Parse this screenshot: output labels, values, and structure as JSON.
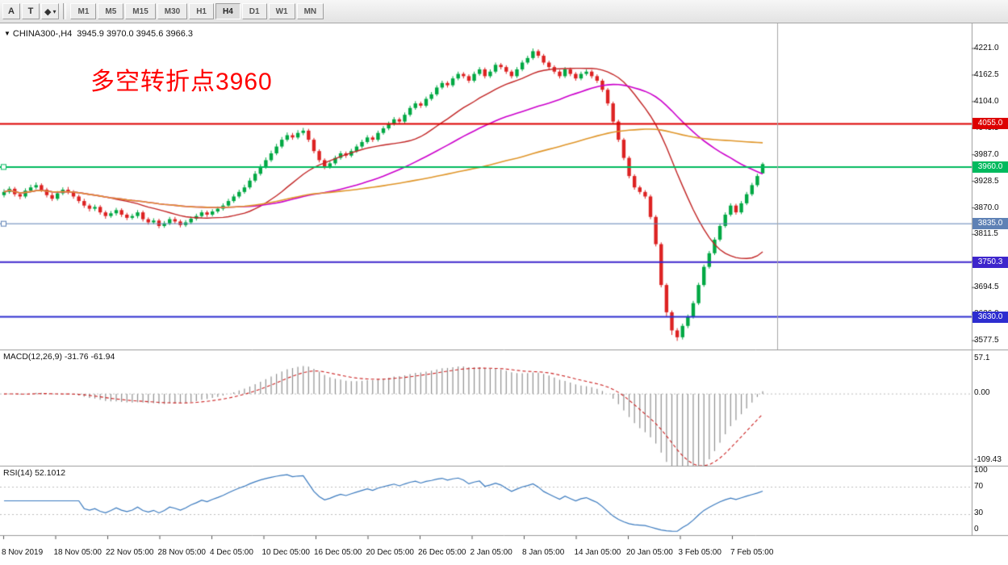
{
  "toolbar": {
    "tool_buttons": [
      {
        "name": "arrow-tool",
        "label": "A"
      },
      {
        "name": "text-tool",
        "label": "T"
      },
      {
        "name": "objects-dropdown",
        "label": "◆",
        "caret": "▾"
      }
    ],
    "timeframes": [
      "M1",
      "M5",
      "M15",
      "M30",
      "H1",
      "H4",
      "D1",
      "W1",
      "MN"
    ],
    "active_timeframe": "H4"
  },
  "chart": {
    "symbol_label": "CHINA300-,H4",
    "ohlc_label": "3945.9 3970.0 3945.6 3966.3",
    "annotation": "多空转折点3960",
    "levels": [
      {
        "label": "4055.0",
        "price": 4055.0,
        "color": "#dd0000",
        "width": 2,
        "handle": false
      },
      {
        "label": "3960.0",
        "price": 3960.0,
        "color": "#00ba5e",
        "width": 2,
        "handle": true
      },
      {
        "label": "3835.0",
        "price": 3835.0,
        "color": "#5e81b5",
        "width": 1,
        "handle": true
      },
      {
        "label": "3750.3",
        "price": 3750.3,
        "color": "#3d25cc",
        "width": 2,
        "handle": false
      },
      {
        "label": "3630.0",
        "price": 3630.0,
        "color": "#2d2dd0",
        "width": 2,
        "handle": false
      }
    ],
    "colors": {
      "up": "#00a843",
      "down": "#dd2222",
      "ma_fast": "#c22525",
      "ma_mid": "#cc00cc",
      "ma_slow": "#e0962a",
      "macd_hist": "#909090",
      "macd_signal": "#cc2222",
      "rsi": "#3a7abf",
      "annotation": "#ff0000"
    }
  },
  "macd_panel": {
    "label": "MACD(12,26,9) -31.76 -61.94",
    "axis_top": "57.1",
    "axis_zero": "0.00",
    "axis_bottom": "-109.43"
  },
  "rsi_panel": {
    "label": "RSI(14) 52.1012",
    "axis": [
      "100",
      "70",
      "30",
      "0"
    ]
  },
  "chart_data": {
    "type": "candlestick",
    "title": "CHINA300-,H4",
    "instrument": "CHINA300-",
    "timeframe": "H4",
    "last_quote": {
      "open": 3945.9,
      "high": 3970.0,
      "low": 3945.6,
      "close": 3966.3
    },
    "price_axis_ticks": [
      4221.0,
      4162.5,
      4104.0,
      4045.5,
      3987.0,
      3928.5,
      3870.0,
      3811.5,
      3753.0,
      3694.5,
      3636.0,
      3577.5
    ],
    "x_axis_ticks": [
      "8 Nov 2019",
      "18 Nov 05:00",
      "22 Nov 05:00",
      "28 Nov 05:00",
      "4 Dec 05:00",
      "10 Dec 05:00",
      "16 Dec 05:00",
      "20 Dec 05:00",
      "26 Dec 05:00",
      "2 Jan 05:00",
      "8 Jan 05:00",
      "14 Jan 05:00",
      "20 Jan 05:00",
      "3 Feb 05:00",
      "7 Feb 05:00"
    ],
    "horizontal_levels": [
      4055.0,
      3960.0,
      3835.0,
      3750.3,
      3630.0
    ],
    "moving_average_periods": [
      20,
      45,
      90
    ],
    "indicators": [
      {
        "type": "MACD",
        "params": [
          12,
          26,
          9
        ],
        "current_macd": -31.76,
        "current_signal": -61.94,
        "axis_range": [
          -109.43,
          57.1
        ]
      },
      {
        "type": "RSI",
        "params": [
          14
        ],
        "current_value": 52.1012,
        "axis_ticks": [
          0,
          30,
          70,
          100
        ]
      }
    ],
    "annotation": {
      "text": "多空转折点3960",
      "color": "#ff0000"
    },
    "format": "[open,high,low,close]",
    "candles_ohlc": [
      [
        3898,
        3911,
        3893,
        3905
      ],
      [
        3905,
        3917,
        3901,
        3912
      ],
      [
        3912,
        3916,
        3895,
        3900
      ],
      [
        3900,
        3904,
        3889,
        3895
      ],
      [
        3895,
        3913,
        3891,
        3908
      ],
      [
        3908,
        3921,
        3904,
        3915
      ],
      [
        3915,
        3926,
        3911,
        3920
      ],
      [
        3920,
        3924,
        3905,
        3910
      ],
      [
        3910,
        3914,
        3893,
        3898
      ],
      [
        3898,
        3903,
        3885,
        3890
      ],
      [
        3890,
        3907,
        3886,
        3902
      ],
      [
        3902,
        3915,
        3898,
        3910
      ],
      [
        3910,
        3916,
        3900,
        3905
      ],
      [
        3905,
        3909,
        3890,
        3895
      ],
      [
        3895,
        3899,
        3880,
        3885
      ],
      [
        3885,
        3890,
        3870,
        3875
      ],
      [
        3875,
        3879,
        3862,
        3868
      ],
      [
        3868,
        3877,
        3863,
        3872
      ],
      [
        3872,
        3876,
        3855,
        3860
      ],
      [
        3860,
        3864,
        3846,
        3852
      ],
      [
        3852,
        3863,
        3848,
        3858
      ],
      [
        3858,
        3870,
        3853,
        3865
      ],
      [
        3865,
        3869,
        3850,
        3855
      ],
      [
        3855,
        3859,
        3843,
        3848
      ],
      [
        3848,
        3857,
        3844,
        3852
      ],
      [
        3852,
        3865,
        3847,
        3860
      ],
      [
        3860,
        3864,
        3840,
        3845
      ],
      [
        3845,
        3849,
        3833,
        3838
      ],
      [
        3838,
        3847,
        3834,
        3842
      ],
      [
        3842,
        3846,
        3825,
        3830
      ],
      [
        3830,
        3841,
        3826,
        3836
      ],
      [
        3836,
        3850,
        3832,
        3845
      ],
      [
        3845,
        3850,
        3835,
        3840
      ],
      [
        3840,
        3844,
        3827,
        3832
      ],
      [
        3832,
        3843,
        3828,
        3838
      ],
      [
        3838,
        3851,
        3834,
        3846
      ],
      [
        3846,
        3857,
        3842,
        3852
      ],
      [
        3852,
        3865,
        3848,
        3860
      ],
      [
        3860,
        3864,
        3850,
        3855
      ],
      [
        3855,
        3867,
        3851,
        3862
      ],
      [
        3862,
        3873,
        3858,
        3868
      ],
      [
        3868,
        3880,
        3864,
        3875
      ],
      [
        3875,
        3890,
        3871,
        3885
      ],
      [
        3885,
        3900,
        3881,
        3895
      ],
      [
        3895,
        3910,
        3891,
        3905
      ],
      [
        3905,
        3921,
        3901,
        3915
      ],
      [
        3915,
        3936,
        3911,
        3930
      ],
      [
        3930,
        3951,
        3926,
        3945
      ],
      [
        3945,
        3966,
        3941,
        3960
      ],
      [
        3960,
        3981,
        3956,
        3975
      ],
      [
        3975,
        3996,
        3971,
        3990
      ],
      [
        3990,
        4011,
        3986,
        4005
      ],
      [
        4005,
        4026,
        4001,
        4020
      ],
      [
        4020,
        4036,
        4016,
        4030
      ],
      [
        4030,
        4035,
        4020,
        4025
      ],
      [
        4025,
        4041,
        4021,
        4035
      ],
      [
        4035,
        4046,
        4030,
        4040
      ],
      [
        4040,
        4044,
        4015,
        4020
      ],
      [
        4020,
        4024,
        3990,
        3995
      ],
      [
        3995,
        3999,
        3970,
        3975
      ],
      [
        3975,
        3979,
        3955,
        3960
      ],
      [
        3960,
        3973,
        3956,
        3968
      ],
      [
        3968,
        3985,
        3964,
        3980
      ],
      [
        3980,
        3995,
        3976,
        3990
      ],
      [
        3990,
        3994,
        3980,
        3985
      ],
      [
        3985,
        4000,
        3981,
        3995
      ],
      [
        3995,
        4010,
        3991,
        4005
      ],
      [
        4005,
        4020,
        4001,
        4015
      ],
      [
        4015,
        4030,
        4011,
        4025
      ],
      [
        4025,
        4029,
        4015,
        4020
      ],
      [
        4020,
        4040,
        4016,
        4035
      ],
      [
        4035,
        4050,
        4031,
        4045
      ],
      [
        4045,
        4060,
        4041,
        4055
      ],
      [
        4055,
        4070,
        4051,
        4065
      ],
      [
        4065,
        4069,
        4055,
        4060
      ],
      [
        4060,
        4080,
        4056,
        4075
      ],
      [
        4075,
        4095,
        4071,
        4090
      ],
      [
        4090,
        4105,
        4086,
        4100
      ],
      [
        4100,
        4104,
        4090,
        4095
      ],
      [
        4095,
        4115,
        4091,
        4110
      ],
      [
        4110,
        4125,
        4106,
        4120
      ],
      [
        4120,
        4140,
        4116,
        4135
      ],
      [
        4135,
        4150,
        4131,
        4145
      ],
      [
        4145,
        4149,
        4135,
        4140
      ],
      [
        4140,
        4160,
        4136,
        4155
      ],
      [
        4155,
        4170,
        4151,
        4165
      ],
      [
        4165,
        4169,
        4155,
        4160
      ],
      [
        4160,
        4164,
        4145,
        4150
      ],
      [
        4150,
        4170,
        4146,
        4165
      ],
      [
        4165,
        4180,
        4161,
        4175
      ],
      [
        4175,
        4179,
        4155,
        4160
      ],
      [
        4160,
        4175,
        4156,
        4170
      ],
      [
        4170,
        4190,
        4166,
        4185
      ],
      [
        4185,
        4189,
        4175,
        4180
      ],
      [
        4180,
        4184,
        4165,
        4170
      ],
      [
        4170,
        4174,
        4155,
        4160
      ],
      [
        4160,
        4180,
        4156,
        4175
      ],
      [
        4175,
        4195,
        4171,
        4190
      ],
      [
        4190,
        4205,
        4186,
        4200
      ],
      [
        4200,
        4221,
        4196,
        4215
      ],
      [
        4215,
        4219,
        4200,
        4205
      ],
      [
        4205,
        4209,
        4185,
        4190
      ],
      [
        4190,
        4194,
        4175,
        4180
      ],
      [
        4180,
        4184,
        4165,
        4170
      ],
      [
        4170,
        4174,
        4155,
        4160
      ],
      [
        4160,
        4180,
        4156,
        4175
      ],
      [
        4175,
        4179,
        4160,
        4165
      ],
      [
        4165,
        4169,
        4150,
        4155
      ],
      [
        4155,
        4170,
        4151,
        4165
      ],
      [
        4165,
        4175,
        4161,
        4170
      ],
      [
        4170,
        4174,
        4155,
        4160
      ],
      [
        4160,
        4164,
        4145,
        4150
      ],
      [
        4150,
        4154,
        4125,
        4130
      ],
      [
        4130,
        4134,
        4095,
        4100
      ],
      [
        4100,
        4104,
        4055,
        4060
      ],
      [
        4060,
        4064,
        4015,
        4020
      ],
      [
        4020,
        4024,
        3975,
        3980
      ],
      [
        3980,
        3984,
        3935,
        3940
      ],
      [
        3940,
        3944,
        3910,
        3915
      ],
      [
        3915,
        3919,
        3900,
        3905
      ],
      [
        3905,
        3909,
        3890,
        3895
      ],
      [
        3895,
        3899,
        3845,
        3850
      ],
      [
        3850,
        3854,
        3785,
        3790
      ],
      [
        3790,
        3794,
        3695,
        3700
      ],
      [
        3700,
        3704,
        3630,
        3640
      ],
      [
        3640,
        3644,
        3590,
        3600
      ],
      [
        3600,
        3605,
        3577,
        3585
      ],
      [
        3585,
        3615,
        3580,
        3610
      ],
      [
        3610,
        3635,
        3605,
        3630
      ],
      [
        3630,
        3665,
        3626,
        3660
      ],
      [
        3660,
        3705,
        3656,
        3700
      ],
      [
        3700,
        3745,
        3696,
        3740
      ],
      [
        3740,
        3775,
        3736,
        3770
      ],
      [
        3770,
        3805,
        3766,
        3800
      ],
      [
        3800,
        3835,
        3796,
        3830
      ],
      [
        3830,
        3860,
        3826,
        3855
      ],
      [
        3855,
        3880,
        3851,
        3875
      ],
      [
        3875,
        3879,
        3855,
        3860
      ],
      [
        3860,
        3885,
        3856,
        3880
      ],
      [
        3880,
        3905,
        3876,
        3900
      ],
      [
        3900,
        3925,
        3896,
        3920
      ],
      [
        3920,
        3945,
        3916,
        3940
      ],
      [
        3945.9,
        3970,
        3945.6,
        3966.3
      ]
    ]
  }
}
